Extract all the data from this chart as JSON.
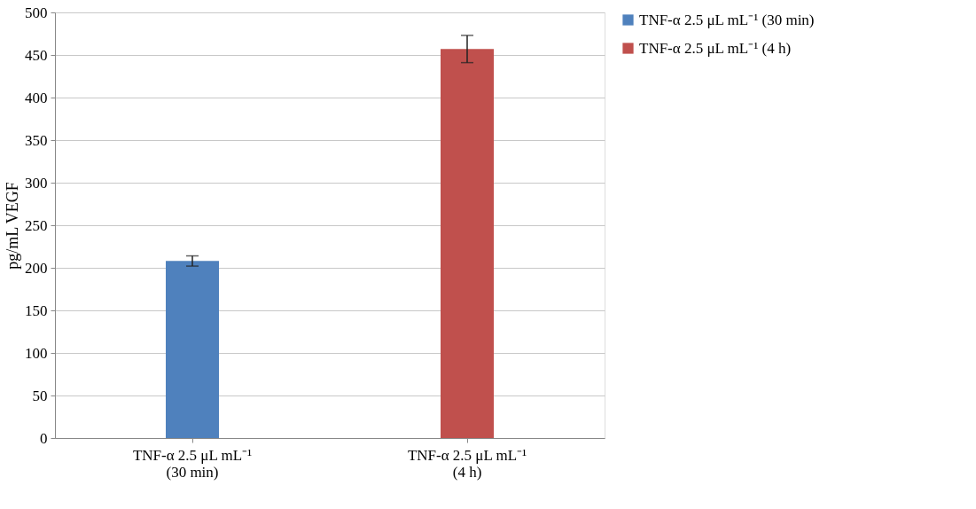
{
  "chart_data": {
    "type": "bar",
    "ylabel": "pg/mL VEGF",
    "categories": [
      "TNF-α 2.5 μL mL⁻¹\n(30 min)",
      "TNF-α 2.5 μL mL⁻¹\n(4 h)"
    ],
    "series": [
      {
        "name": "TNF-α 2.5 μL mL⁻¹ (30 min)",
        "color": "#4f81bd",
        "values": [
          208,
          null
        ],
        "errors": [
          6,
          null
        ]
      },
      {
        "name": "TNF-α 2.5 μL mL⁻¹ (4 h)",
        "color": "#c0504d",
        "values": [
          null,
          457
        ],
        "errors": [
          null,
          16
        ]
      }
    ],
    "ylim": [
      0,
      500
    ],
    "yticks": [
      0,
      50,
      100,
      150,
      200,
      250,
      300,
      350,
      400,
      450,
      500
    ],
    "grid": "y",
    "legend": "right"
  }
}
